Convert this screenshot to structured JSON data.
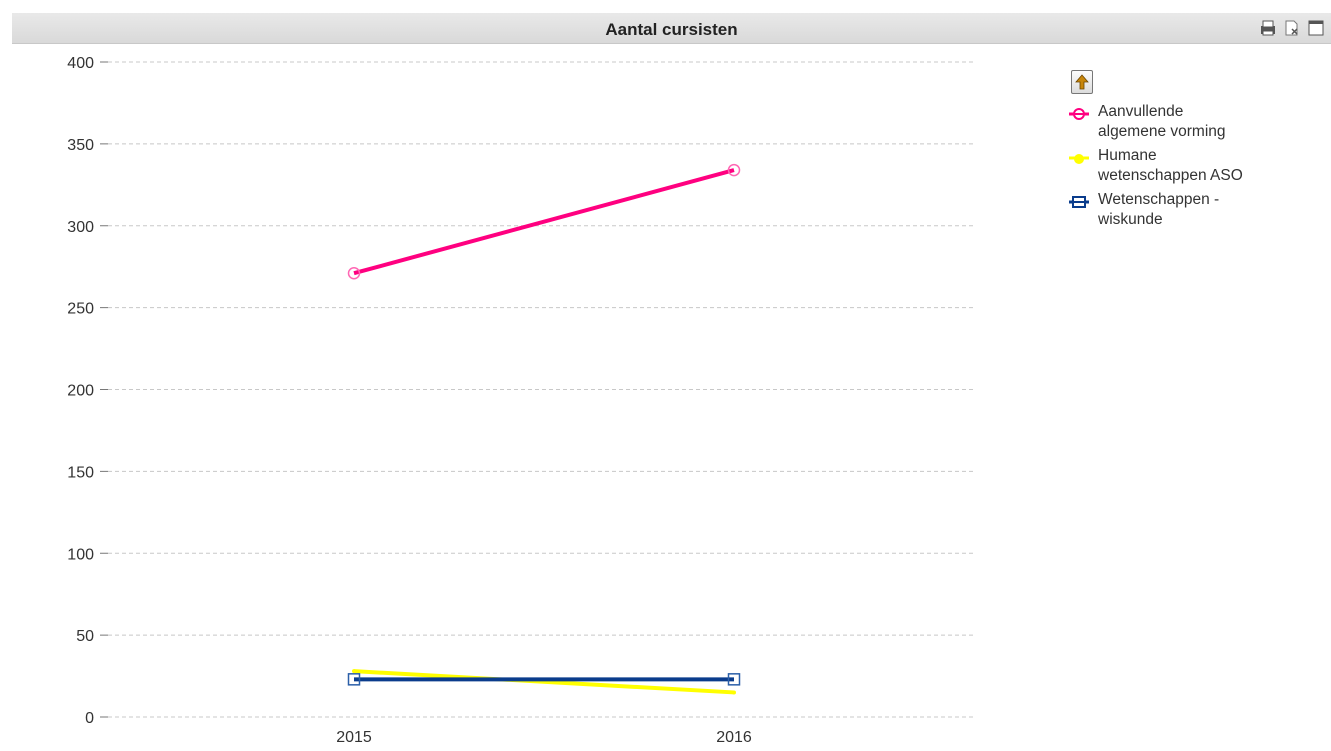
{
  "window": {
    "title": "Aantal cursisten",
    "icons": [
      "printer-icon",
      "clear-selections-icon",
      "maximize-icon"
    ]
  },
  "legend": {
    "up_button_icon": "arrow-up-icon",
    "items": [
      {
        "label": "Aanvullende\nalgemene vorming",
        "color": "#ff0080"
      },
      {
        "label": "Humane\nwetenschappen ASO",
        "color": "#ffff00"
      },
      {
        "label": "Wetenschappen -\nwiskunde",
        "color": "#0a3c8c"
      }
    ]
  },
  "chart_data": {
    "type": "line",
    "title": "Aantal cursisten",
    "x": [
      "2015",
      "2016"
    ],
    "ylim": [
      0,
      400
    ],
    "yticks": [
      "0",
      "50",
      "100",
      "150",
      "200",
      "250",
      "300",
      "350",
      "400"
    ],
    "grid": true,
    "legend_position": "right",
    "series": [
      {
        "name": "Aanvullende algemene vorming",
        "values": [
          271,
          334
        ],
        "color": "#ff0080",
        "marker": "circle"
      },
      {
        "name": "Humane wetenschappen ASO",
        "values": [
          28,
          15
        ],
        "color": "#ffff00",
        "marker": "circle"
      },
      {
        "name": "Wetenschappen - wiskunde",
        "values": [
          23,
          23
        ],
        "color": "#0a3c8c",
        "marker": "square"
      }
    ]
  }
}
